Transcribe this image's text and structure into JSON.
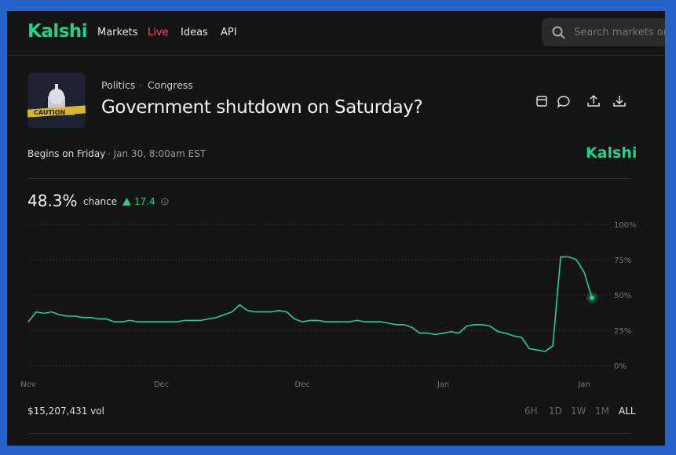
{
  "nav": {
    "logo": "Kalshi",
    "links": [
      "Markets",
      "Live",
      "Ideas",
      "API"
    ],
    "search_placeholder": "Search markets or"
  },
  "market": {
    "category": "Politics",
    "separator": "·",
    "subcategory": "Congress",
    "title": "Government shutdown on Saturday?",
    "begins": "Begins on Friday",
    "date": "· Jan 30, 8:00am EST",
    "watermark": "Kalshi",
    "chance_value": "48.3%",
    "chance_label": "chance",
    "change": "17.4",
    "volume": "$15,207,431 vol",
    "ranges": [
      "6H",
      "1D",
      "1W",
      "1M",
      "ALL"
    ]
  },
  "chart_data": {
    "type": "line",
    "categories": [
      "Nov",
      null,
      null,
      null,
      null,
      null,
      null,
      null,
      null,
      null,
      null,
      null,
      null,
      null,
      null,
      null,
      null,
      "Dec",
      null,
      null,
      null,
      null,
      null,
      null,
      null,
      null,
      null,
      null,
      null,
      null,
      null,
      null,
      null,
      null,
      null,
      "Dec",
      null,
      null,
      null,
      null,
      null,
      null,
      null,
      null,
      null,
      null,
      null,
      null,
      null,
      null,
      null,
      null,
      null,
      "Jan",
      null,
      null,
      null,
      null,
      null,
      null,
      null,
      null,
      null,
      null,
      null,
      null,
      null,
      null,
      null,
      null,
      null,
      "Jan",
      null
    ],
    "series": [
      {
        "name": "chance",
        "color": "#22d18b",
        "values": [
          31,
          38,
          37,
          38,
          36,
          35,
          35,
          34,
          34,
          33,
          33,
          31,
          31,
          32,
          31,
          31,
          31,
          31,
          31,
          31,
          32,
          32,
          32,
          33,
          34,
          36,
          38,
          43,
          39,
          38,
          38,
          38,
          39,
          38,
          33,
          31,
          32,
          32,
          31,
          31,
          31,
          31,
          32,
          31,
          31,
          31,
          30,
          29,
          29,
          27,
          23,
          23,
          22,
          23,
          24,
          23,
          28,
          29,
          29,
          28,
          24,
          23,
          21,
          20,
          12,
          11,
          10,
          14,
          77,
          77,
          75,
          66,
          48
        ]
      }
    ],
    "ylim": [
      0,
      100
    ],
    "yticks": [
      {
        "value": 0,
        "label": "0%"
      },
      {
        "value": 25,
        "label": "25%"
      },
      {
        "value": 50,
        "label": "50%"
      },
      {
        "value": 75,
        "label": "75%"
      },
      {
        "value": 100,
        "label": "100%"
      }
    ],
    "grid": true
  }
}
